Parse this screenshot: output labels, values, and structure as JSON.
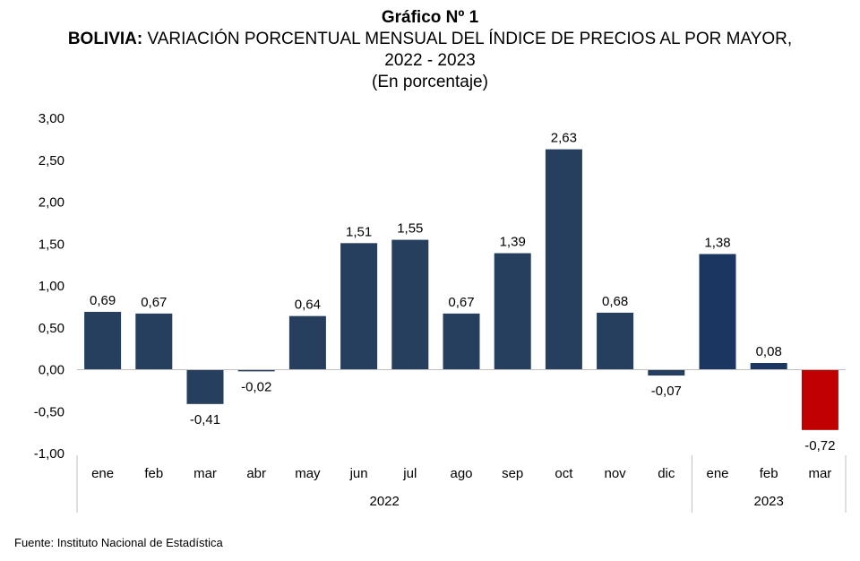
{
  "header": {
    "figure_number": "Gráfico Nº 1",
    "country": "BOLIVIA:",
    "title_rest": "VARIACIÓN PORCENTUAL MENSUAL DEL ÍNDICE DE PRECIOS AL POR MAYOR,",
    "years": "2022 - 2023",
    "unit": "(En porcentaje)"
  },
  "footer": {
    "source": "Fuente: Instituto Nacional de Estadística"
  },
  "colors": {
    "bar_2022": "#263f5f",
    "bar_2023": "#1b3660",
    "bar_negative_last": "#c00000",
    "axis": "#bfbfbf"
  },
  "chart_data": {
    "type": "bar",
    "title": "BOLIVIA: VARIACIÓN PORCENTUAL MENSUAL DEL ÍNDICE DE PRECIOS AL POR MAYOR, 2022 - 2023",
    "subtitle": "(En porcentaje)",
    "categories": [
      "ene",
      "feb",
      "mar",
      "abr",
      "may",
      "jun",
      "jul",
      "ago",
      "sep",
      "oct",
      "nov",
      "dic",
      "ene",
      "feb",
      "mar"
    ],
    "groups": [
      {
        "label": "2022",
        "count": 12
      },
      {
        "label": "2023",
        "count": 3
      }
    ],
    "values": [
      0.69,
      0.67,
      -0.41,
      -0.02,
      0.64,
      1.51,
      1.55,
      0.67,
      1.39,
      2.63,
      0.68,
      -0.07,
      1.38,
      0.08,
      -0.72
    ],
    "labels": [
      "0,69",
      "0,67",
      "-0,41",
      "-0,02",
      "0,64",
      "1,51",
      "1,55",
      "0,67",
      "1,39",
      "2,63",
      "0,68",
      "-0,07",
      "1,38",
      "0,08",
      "-0,72"
    ],
    "yticks": [
      3.0,
      2.5,
      2.0,
      1.5,
      1.0,
      0.5,
      0.0,
      -0.5,
      -1.0
    ],
    "ytick_labels": [
      "3,00",
      "2,50",
      "2,00",
      "1,50",
      "1,00",
      "0,50",
      "0,00",
      "-0,50",
      "-1,00"
    ],
    "ylim": [
      -1.0,
      3.0
    ],
    "grid": false,
    "legend": "none"
  }
}
